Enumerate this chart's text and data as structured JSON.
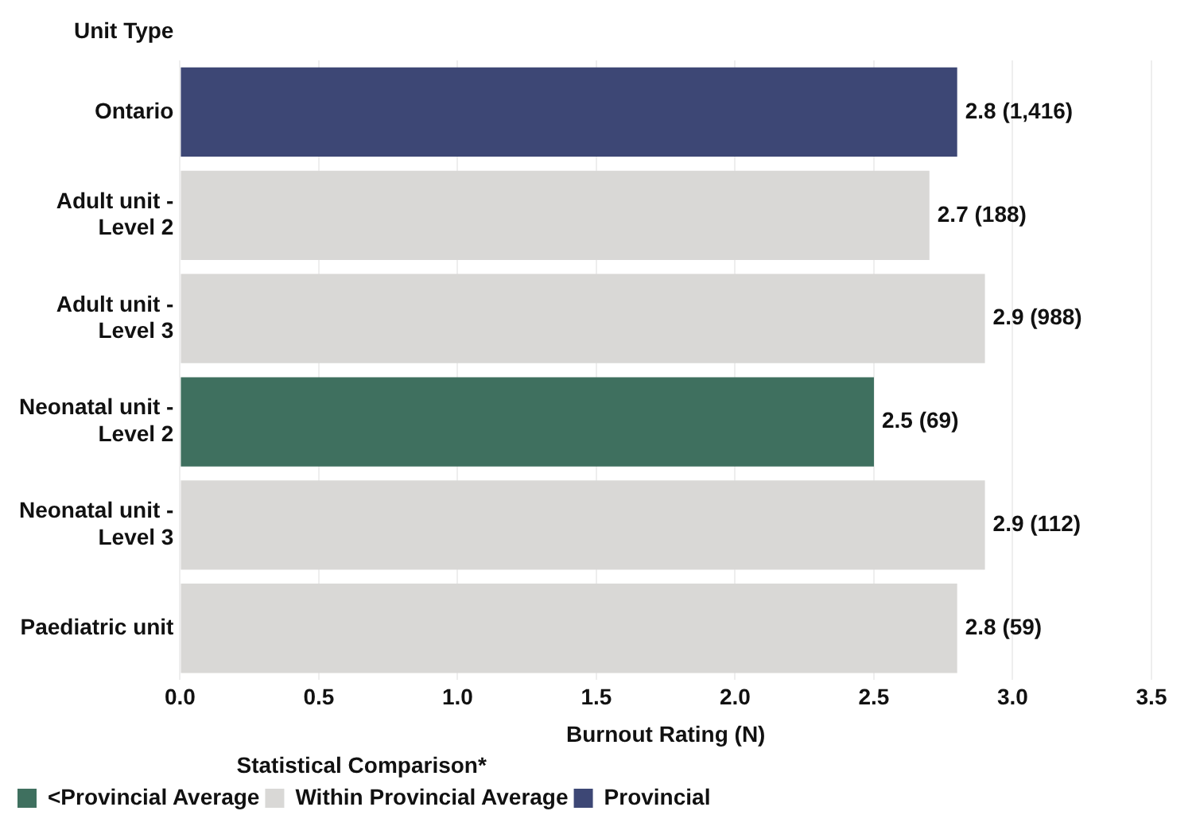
{
  "chart_data": {
    "type": "bar",
    "orientation": "horizontal",
    "stacked": true,
    "ylabel": "Unit Type",
    "xlabel": "Burnout Rating (N)",
    "legend_title": "Statistical Comparison*",
    "legend": "bottom left",
    "grid": "x",
    "categories": [
      "Ontario",
      "Adult unit - Level 2",
      "Adult unit - Level 3",
      "Neonatal unit - Level 2",
      "Neonatal unit - Level 3",
      "Paediatric unit"
    ],
    "xlim": [
      0,
      3.5
    ],
    "xticks": [
      {
        "value": 0,
        "label": "0.0"
      },
      {
        "value": 0.5,
        "label": "0.5"
      },
      {
        "value": 1,
        "label": "1.0"
      },
      {
        "value": 1.5,
        "label": "1.5"
      },
      {
        "value": 2,
        "label": "2.0"
      },
      {
        "value": 2.5,
        "label": "2.5"
      },
      {
        "value": 3,
        "label": "3.0"
      },
      {
        "value": 3.5,
        "label": "3.5"
      }
    ],
    "series": [
      {
        "name": "<Provincial Average",
        "color": "#3f705f",
        "values": [
          null,
          null,
          null,
          2.5,
          null,
          null
        ],
        "value_labels": [
          null,
          null,
          null,
          "2.5 (69)",
          null,
          null
        ]
      },
      {
        "name": "Within Provincial Average",
        "color": "#d9d8d6",
        "values": [
          null,
          2.7,
          2.9,
          null,
          2.9,
          2.8
        ],
        "value_labels": [
          null,
          "2.7 (188)",
          "2.9 (988)",
          null,
          "2.9 (112)",
          "2.8 (59)"
        ]
      },
      {
        "name": "Provincial",
        "color": "#3d4775",
        "values": [
          2.8,
          null,
          null,
          null,
          null,
          null
        ],
        "value_labels": [
          "2.8 (1,416)",
          null,
          null,
          null,
          null,
          null
        ]
      }
    ]
  }
}
